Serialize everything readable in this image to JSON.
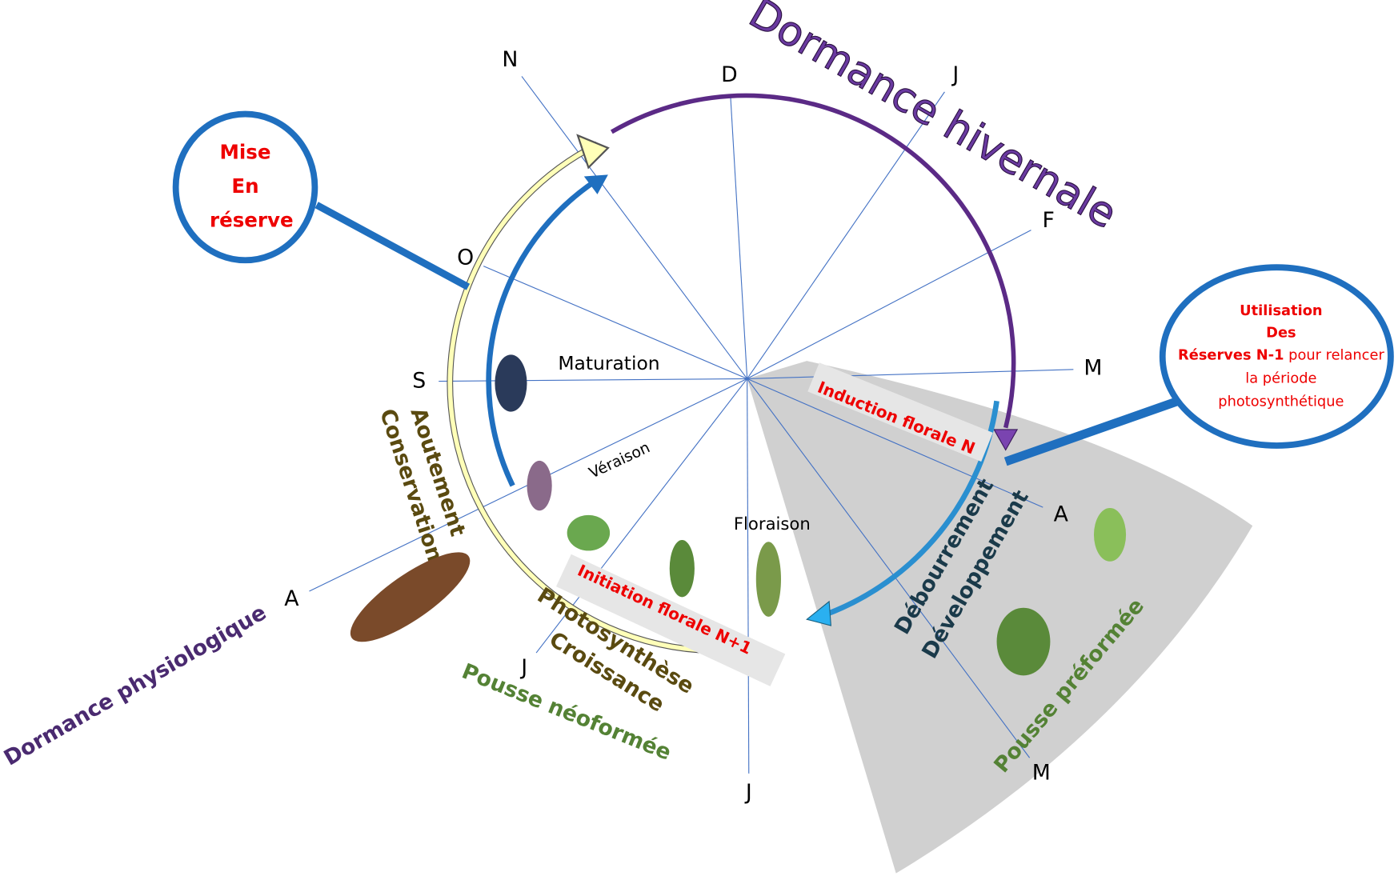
{
  "title": "Dormance hivernale",
  "months": [
    "N",
    "D",
    "J",
    "F",
    "M",
    "A",
    "M",
    "J",
    "J",
    "A",
    "S",
    "O"
  ],
  "stages": {
    "maturation": "Maturation",
    "veraison": "Véraison",
    "floraison": "Floraison",
    "induction": "Induction florale N",
    "initiation": "Initiation florale N+1"
  },
  "phases": {
    "aoutement": "Aoutement",
    "conservation": "Conservation",
    "photosynthese": "Photosynthèse",
    "croissance": "Croissance",
    "neoformee": "Pousse néoformée",
    "debourrement": "Débourrement",
    "developpement": "Développement",
    "preformee": "Pousse préformée",
    "physiologique": "Dormance physiologique"
  },
  "callouts": {
    "reserve": [
      "Mise",
      "En",
      "réserve"
    ],
    "utilisation": {
      "l1": "Utilisation",
      "l2": "Des",
      "l3bold": "Réserves N-1",
      "l3": " pour relancer",
      "l4": "la période",
      "l5": "photosynthétique"
    }
  }
}
